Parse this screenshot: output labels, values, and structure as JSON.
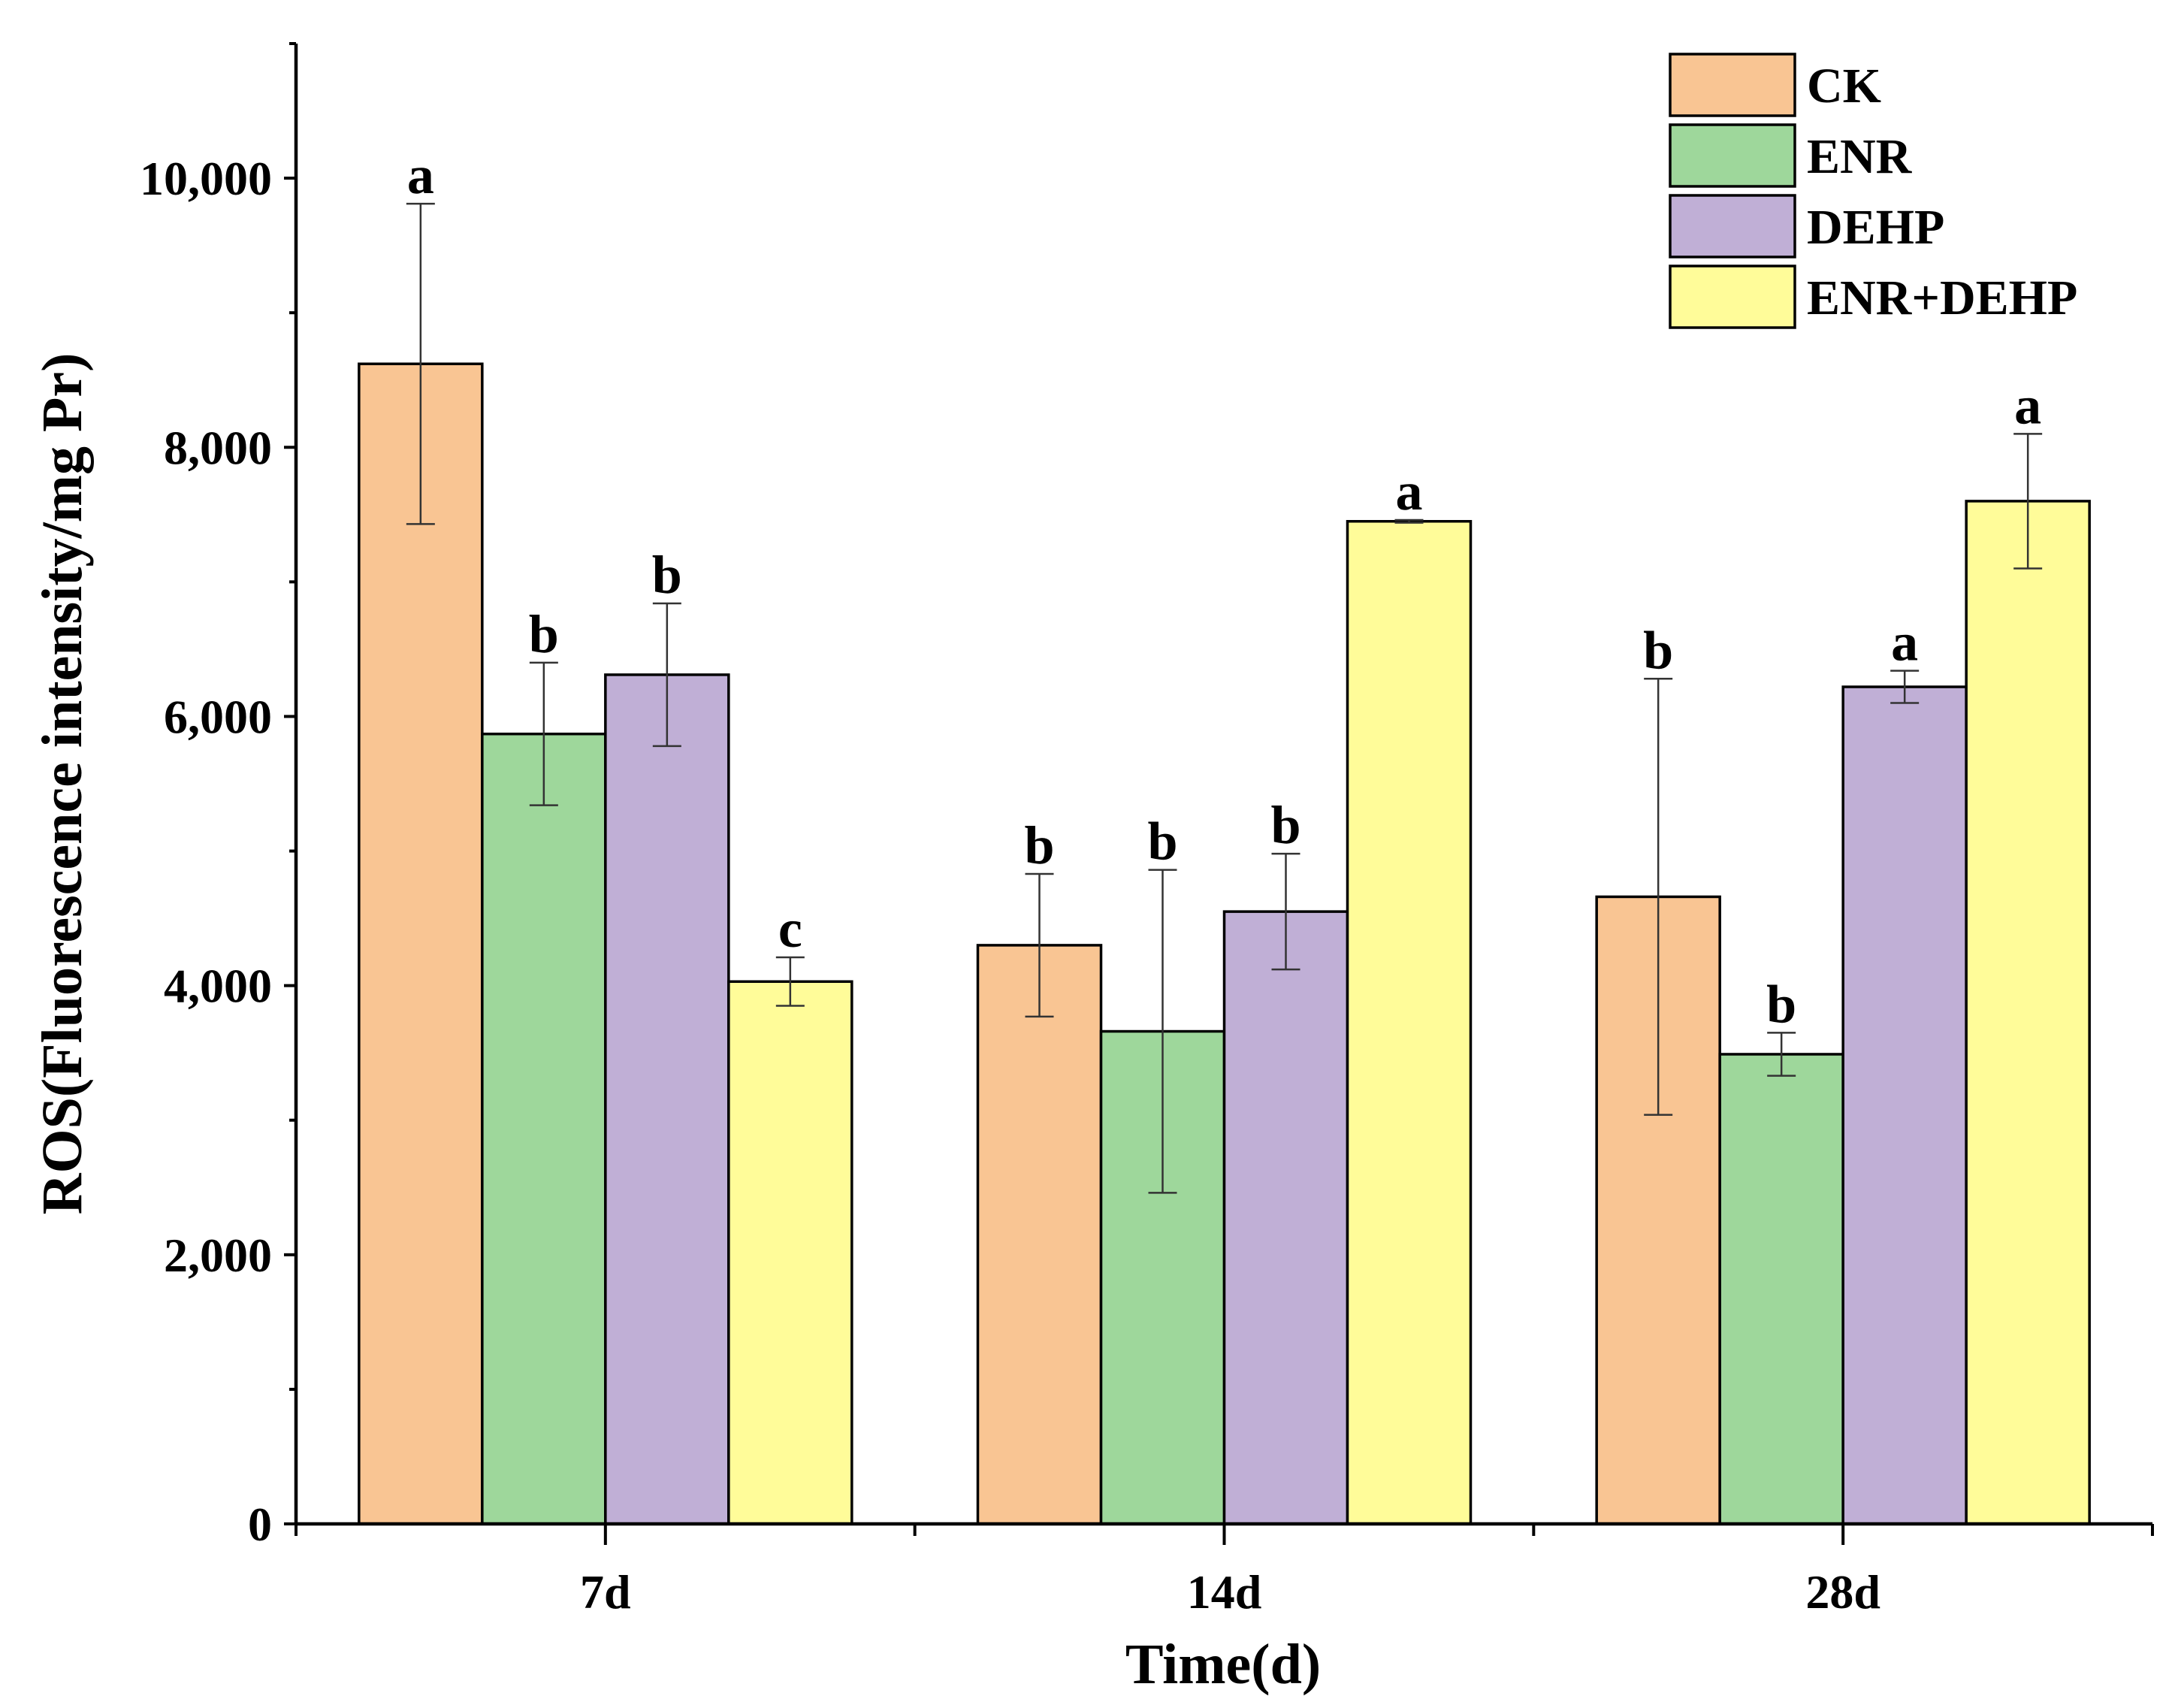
{
  "chart_data": {
    "type": "bar",
    "xlabel": "Time(d)",
    "ylabel": "ROS(Fluorescence intensity/mg Pr)",
    "ylim": [
      0,
      11000
    ],
    "yticks": [
      0,
      2000,
      4000,
      6000,
      8000,
      10000
    ],
    "ytick_labels": [
      "0",
      "2,000",
      "4,000",
      "6,000",
      "8,000",
      "10,000"
    ],
    "categories": [
      "7d",
      "14d",
      "28d"
    ],
    "legend_position": "top-right",
    "series": [
      {
        "name": "CK",
        "color": "#F9C593",
        "values": [
          8620,
          4300,
          4660
        ],
        "errors": [
          1190,
          530,
          1620
        ],
        "labels": [
          "a",
          "b",
          "b"
        ]
      },
      {
        "name": "ENR",
        "color": "#9ED79B",
        "values": [
          5870,
          3660,
          3490
        ],
        "errors": [
          530,
          1200,
          160
        ],
        "labels": [
          "b",
          "b",
          "b"
        ]
      },
      {
        "name": "DEHP",
        "color": "#C0AFD6",
        "values": [
          6310,
          4550,
          6220
        ],
        "errors": [
          530,
          430,
          120
        ],
        "labels": [
          "b",
          "b",
          "a"
        ]
      },
      {
        "name": "ENR+DEHP",
        "color": "#FFFC99",
        "values": [
          4030,
          7450,
          7600
        ],
        "errors": [
          180,
          10,
          500
        ],
        "labels": [
          "c",
          "a",
          "a"
        ]
      }
    ]
  }
}
